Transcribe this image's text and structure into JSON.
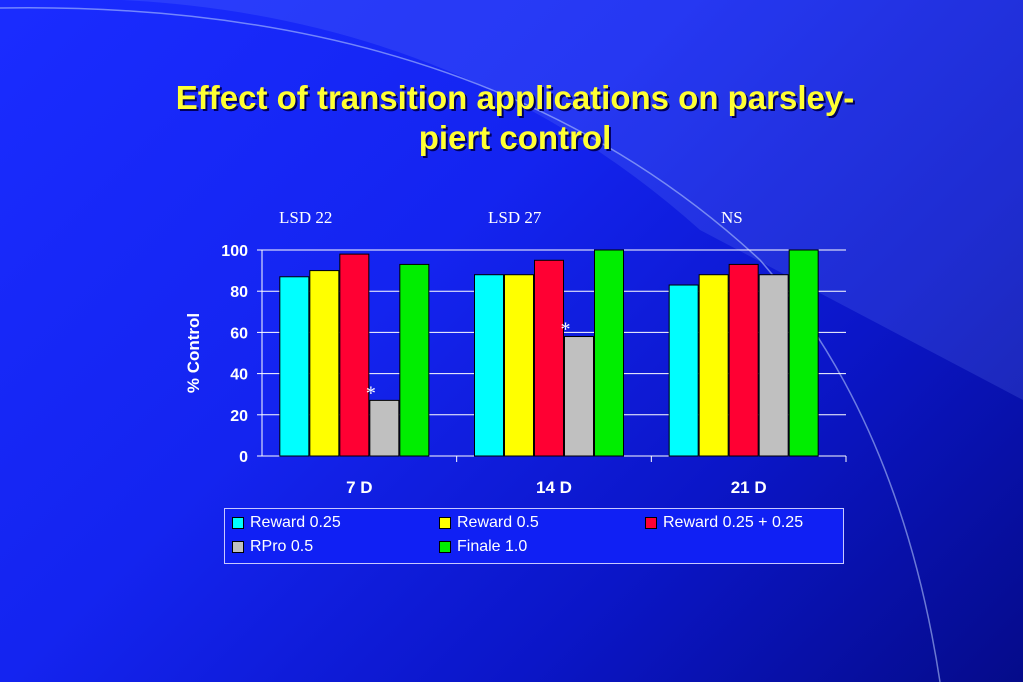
{
  "slide": {
    "title_line1": "Effect of transition applications on parsley-",
    "title_line2": "piert control"
  },
  "annotations": {
    "lsd": [
      "LSD 22",
      "LSD 27",
      "NS"
    ],
    "asterisk": "*"
  },
  "chart_data": {
    "type": "bar",
    "categories": [
      "7 D",
      "14 D",
      "21 D"
    ],
    "series": [
      {
        "name": "Reward 0.25",
        "color": "#00ffff",
        "values": [
          87,
          88,
          83
        ]
      },
      {
        "name": "Reward 0.5",
        "color": "#ffff00",
        "values": [
          90,
          88,
          88
        ]
      },
      {
        "name": "Reward 0.25 + 0.25",
        "color": "#ff0033",
        "values": [
          98,
          95,
          93
        ]
      },
      {
        "name": "RPro 0.5",
        "color": "#c0c0c0",
        "values": [
          27,
          58,
          88
        ]
      },
      {
        "name": "Finale 1.0",
        "color": "#00ee00",
        "values": [
          93,
          100,
          100
        ]
      }
    ],
    "ylabel": "% Control",
    "xlabel": "",
    "ylim": [
      0,
      100
    ],
    "yticks": [
      0,
      20,
      40,
      60,
      80,
      100
    ],
    "grid": true,
    "legend_position": "bottom",
    "significance_marks": [
      {
        "category": "7 D",
        "series": "RPro 0.5",
        "mark": "*"
      },
      {
        "category": "14 D",
        "series": "RPro 0.5",
        "mark": "*"
      }
    ]
  }
}
